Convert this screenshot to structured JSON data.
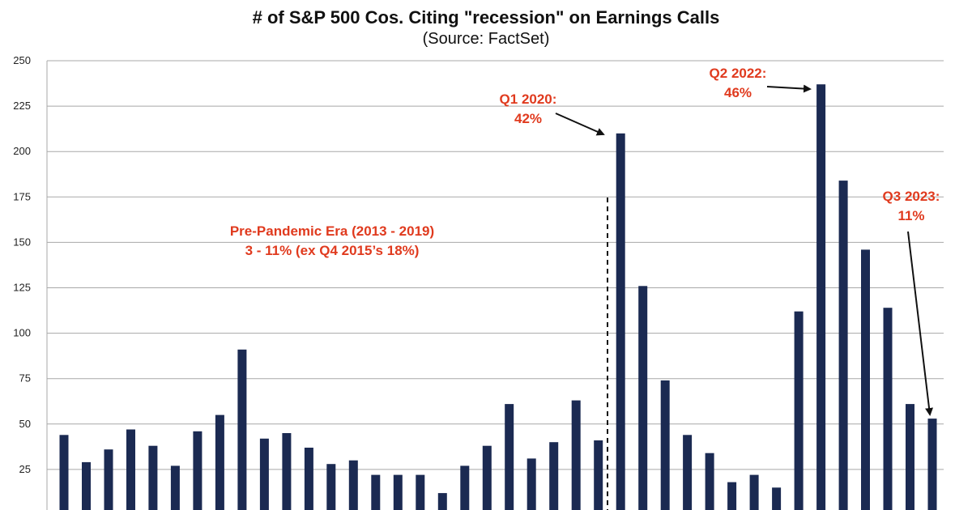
{
  "chart_data": {
    "type": "bar",
    "title": "# of S&P 500 Cos. Citing \"recession\" on Earnings Calls",
    "subtitle": "(Source: FactSet)",
    "xlabel": "",
    "ylabel": "",
    "ylim": [
      0,
      250
    ],
    "yticks": [
      25,
      50,
      75,
      100,
      125,
      150,
      175,
      200,
      225,
      250
    ],
    "grid": true,
    "bar_color": "#1b2a52",
    "values": [
      44,
      29,
      36,
      47,
      38,
      27,
      46,
      55,
      91,
      42,
      45,
      37,
      28,
      30,
      22,
      22,
      22,
      12,
      27,
      38,
      61,
      31,
      40,
      63,
      41,
      210,
      126,
      74,
      44,
      34,
      18,
      22,
      15,
      112,
      237,
      184,
      146,
      114,
      61,
      53
    ],
    "annotations": [
      {
        "lines": [
          "Q1 2020:",
          "42%"
        ],
        "color": "#e03a1e"
      },
      {
        "lines": [
          "Q2 2022:",
          "46%"
        ],
        "color": "#e03a1e"
      },
      {
        "lines": [
          "Q3 2023:",
          "11%"
        ],
        "color": "#e03a1e"
      },
      {
        "lines": [
          "Pre-Pandemic Era (2013 - 2019)",
          "3 - 11% (ex Q4 2015’s 18%)"
        ],
        "color": "#e03a1e"
      }
    ]
  }
}
